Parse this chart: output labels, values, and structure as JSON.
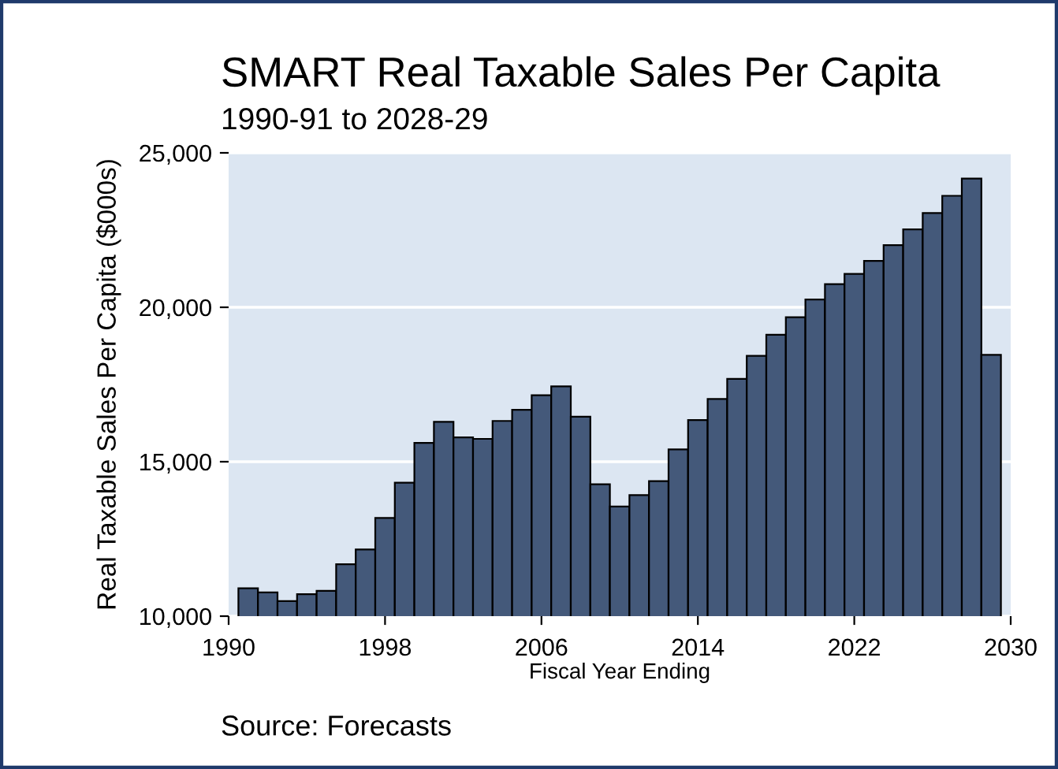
{
  "chart_data": {
    "type": "bar",
    "title": "SMART Real Taxable Sales Per Capita",
    "subtitle": "1990-91 to 2028-29",
    "xlabel": "Fiscal Year Ending",
    "ylabel": "Real Taxable Sales Per Capita ($000s)",
    "annotations": [
      "Source: Forecasts"
    ],
    "x": [
      1991,
      1992,
      1993,
      1994,
      1995,
      1996,
      1997,
      1998,
      1999,
      2000,
      2001,
      2002,
      2003,
      2004,
      2005,
      2006,
      2007,
      2008,
      2009,
      2010,
      2011,
      2012,
      2013,
      2014,
      2015,
      2016,
      2017,
      2018,
      2019,
      2020,
      2021,
      2022,
      2023,
      2024,
      2025,
      2026,
      2027,
      2028,
      2029
    ],
    "values": [
      10900,
      10770,
      10490,
      10710,
      10820,
      11680,
      12160,
      13180,
      14320,
      15610,
      16290,
      15790,
      15740,
      16320,
      16680,
      17150,
      17440,
      16460,
      14270,
      13550,
      13920,
      14370,
      15400,
      16350,
      17030,
      17680,
      18430,
      19110,
      19680,
      20250,
      20750,
      21080,
      21500,
      22010,
      22520,
      23050,
      23610,
      24170,
      18460
    ],
    "color": "#44597a",
    "xlim": [
      1990,
      2030
    ],
    "xticks": [
      1990,
      1998,
      2006,
      2014,
      2022,
      2030
    ],
    "ylim": [
      10000,
      25000
    ],
    "yticks": [
      {
        "value": 10000,
        "label": "10,000"
      },
      {
        "value": 15000,
        "label": "15,000"
      },
      {
        "value": 20000,
        "label": "20,000"
      },
      {
        "value": 25000,
        "label": "25,000"
      }
    ],
    "grid": "y",
    "legend": false
  }
}
